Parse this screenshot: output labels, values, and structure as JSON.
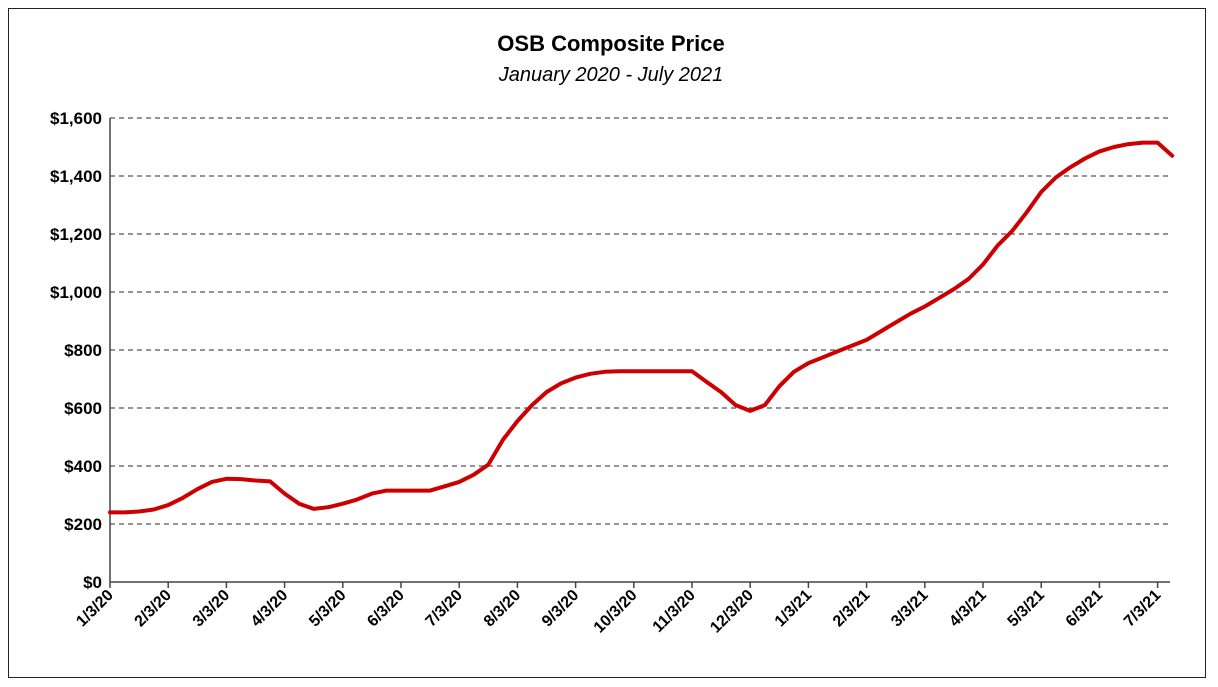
{
  "chart_data": {
    "type": "line",
    "title": "OSB Composite Price",
    "subtitle": "January 2020 - July 2021",
    "xlabel": "",
    "ylabel": "",
    "ylim": [
      0,
      1600
    ],
    "y_ticks": [
      0,
      200,
      400,
      600,
      800,
      1000,
      1200,
      1400,
      1600
    ],
    "y_tick_labels": [
      "$0",
      "$200",
      "$400",
      "$600",
      "$800",
      "$1,000",
      "$1,200",
      "$1,400",
      "$1,600"
    ],
    "grid": true,
    "x_tick_labels": [
      "1/3/20",
      "2/3/20",
      "3/3/20",
      "4/3/20",
      "5/3/20",
      "6/3/20",
      "7/3/20",
      "8/3/20",
      "9/3/20",
      "10/3/20",
      "11/3/20",
      "12/3/20",
      "1/3/21",
      "2/3/21",
      "3/3/21",
      "4/3/21",
      "5/3/21",
      "6/3/21",
      "7/3/21"
    ],
    "series": [
      {
        "name": "OSB Composite Price",
        "color": "#cc0000",
        "x": [
          0,
          0.25,
          0.5,
          0.75,
          1,
          1.25,
          1.5,
          1.75,
          2,
          2.25,
          2.5,
          2.75,
          3,
          3.25,
          3.5,
          3.75,
          4,
          4.25,
          4.5,
          4.75,
          5,
          5.25,
          5.5,
          5.75,
          6,
          6.25,
          6.5,
          6.75,
          7,
          7.25,
          7.5,
          7.75,
          8,
          8.25,
          8.5,
          8.75,
          9,
          9.25,
          9.5,
          9.75,
          10,
          10.25,
          10.5,
          10.75,
          11,
          11.25,
          11.5,
          11.75,
          12,
          12.25,
          12.5,
          12.75,
          13,
          13.25,
          13.5,
          13.75,
          14,
          14.25,
          14.5,
          14.75,
          15,
          15.25,
          15.5,
          15.75,
          16,
          16.25,
          16.5,
          16.75,
          17,
          17.25,
          17.5,
          17.75,
          18,
          18.25
        ],
        "values": [
          240,
          240,
          243,
          250,
          265,
          290,
          320,
          345,
          356,
          355,
          350,
          347,
          305,
          270,
          252,
          258,
          270,
          285,
          305,
          315,
          315,
          315,
          315,
          330,
          345,
          370,
          405,
          490,
          555,
          610,
          655,
          685,
          705,
          718,
          725,
          727,
          727,
          727,
          727,
          727,
          727,
          690,
          655,
          610,
          590,
          610,
          675,
          725,
          755,
          775,
          795,
          815,
          835,
          865,
          895,
          925,
          950,
          980,
          1010,
          1045,
          1095,
          1160,
          1210,
          1275,
          1345,
          1395,
          1430,
          1460,
          1485,
          1500,
          1510,
          1515,
          1515,
          1470
        ]
      }
    ]
  }
}
